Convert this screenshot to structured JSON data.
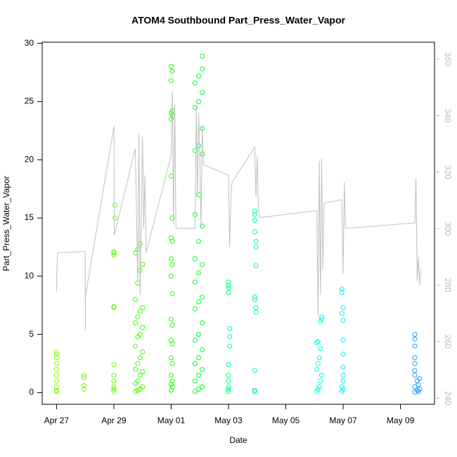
{
  "chart_data": {
    "type": "scatter",
    "title": "ATOM4 Southbound Part_Press_Water_Vapor",
    "xlabel": "Date",
    "ylabel": "Part_Press_Water_Vapor",
    "xlim": [
      "04-26 12:00",
      "05-10 04:30"
    ],
    "ylim": [
      -1.0,
      30.1
    ],
    "y2lim": [
      237.8,
      366
    ],
    "xticks": [
      {
        "value": "04-27 00:00",
        "label": "Apr 27"
      },
      {
        "value": "04-29 00:00",
        "label": "Apr 29"
      },
      {
        "value": "05-01 00:00",
        "label": "May 01"
      },
      {
        "value": "05-03 00:00",
        "label": "May 03"
      },
      {
        "value": "05-05 00:00",
        "label": "May 05"
      },
      {
        "value": "05-07 00:00",
        "label": "May 07"
      },
      {
        "value": "05-09 00:00",
        "label": "May 09"
      }
    ],
    "yticks": [
      0,
      5,
      10,
      15,
      20,
      25,
      30
    ],
    "y2ticks": [
      240,
      260,
      280,
      300,
      320,
      340,
      360
    ],
    "series": [
      {
        "color": "#80ff00",
        "x": [
          "04-27 00:00",
          "04-27 00:00",
          "04-27 00:00",
          "04-27 00:00",
          "04-27 00:00",
          "04-27 00:00",
          "04-27 00:00",
          "04-27 00:00",
          "04-27 00:00",
          "04-27 00:00"
        ],
        "values": [
          0.1,
          0.2,
          0.5,
          1,
          1.5,
          2,
          2.5,
          3,
          3.3,
          3.5
        ]
      },
      {
        "color": "#70ff00",
        "x": [
          "04-27 23:00",
          "04-27 23:00",
          "04-27 23:00",
          "04-27 23:00"
        ],
        "values": [
          0.3,
          0.6,
          1.3,
          1.5
        ]
      },
      {
        "color": "#60ff00",
        "x": [
          "04-29 00:00",
          "04-29 00:00",
          "04-29 00:00",
          "04-29 00:00",
          "04-29 00:00",
          "04-29 00:00",
          "04-29 00:00",
          "04-29 00:00",
          "04-29 00:00",
          "04-29 00:00",
          "04-29 00:00",
          "04-29 01:00",
          "04-29 01:00"
        ],
        "values": [
          0.1,
          0.3,
          0.5,
          1,
          1.5,
          2.4,
          7.3,
          7.4,
          11.8,
          12,
          12.1,
          15,
          16.1
        ]
      },
      {
        "color": "#40ff00",
        "x": [
          "04-29 18:00",
          "04-29 20:00",
          "04-29 22:00",
          "04-30 00:00",
          "04-29 18:00",
          "04-29 20:00",
          "04-29 22:00",
          "04-30 00:00",
          "04-29 18:00",
          "04-29 20:00",
          "04-29 22:00",
          "04-30 00:00",
          "04-29 18:00",
          "04-29 20:00",
          "04-29 22:00",
          "04-30 00:00",
          "04-29 18:00",
          "04-29 20:00",
          "04-29 22:00",
          "04-30 00:00",
          "04-29 18:00",
          "04-29 20:00",
          "04-29 22:00",
          "04-30 00:00",
          "04-29 18:00",
          "04-29 20:00",
          "04-29 22:00"
        ],
        "values": [
          0.1,
          0.2,
          0.3,
          0.5,
          0.8,
          1,
          1.5,
          1.8,
          2,
          2.5,
          3,
          3.5,
          4,
          4.8,
          5,
          5.6,
          6,
          6.5,
          7,
          7.3,
          8,
          9.4,
          10.5,
          11,
          12,
          12.3,
          12.8
        ]
      },
      {
        "color": "#20ff00",
        "x": [
          "05-01 00:00",
          "05-01 01:00",
          "05-01 00:00",
          "05-01 01:00",
          "05-01 00:00",
          "05-01 01:00",
          "05-01 00:00",
          "05-01 01:00",
          "05-01 00:00",
          "05-01 01:00",
          "05-01 00:00",
          "05-01 01:00",
          "05-01 00:00",
          "05-01 01:00",
          "05-01 00:00",
          "05-01 01:00",
          "05-01 00:00",
          "05-01 01:00",
          "05-01 00:00",
          "05-01 00:00",
          "05-01 01:00",
          "05-01 00:00",
          "05-01 01:00",
          "05-01 00:00",
          "05-01 01:00",
          "05-01 00:00"
        ],
        "values": [
          0.2,
          0.5,
          0.7,
          1,
          1.5,
          2.5,
          3,
          4.2,
          4.5,
          5.8,
          6.3,
          8.5,
          10,
          11,
          11.5,
          13,
          13.3,
          15,
          18.6,
          23.5,
          23.8,
          24,
          24.2,
          26.8,
          27.6,
          28
        ]
      },
      {
        "color": "#00ff30",
        "x": [
          "05-01 20:00",
          "05-01 23:00",
          "05-02 02:00",
          "05-01 20:00",
          "05-01 23:00",
          "05-02 02:00",
          "05-01 20:00",
          "05-01 23:00",
          "05-02 02:00",
          "05-01 20:00",
          "05-01 23:00",
          "05-02 02:00",
          "05-01 20:00",
          "05-01 23:00",
          "05-02 02:00",
          "05-01 20:00",
          "05-01 23:00",
          "05-02 02:00",
          "05-01 20:00",
          "05-01 23:00",
          "05-02 02:00",
          "05-01 20:00",
          "05-01 23:00",
          "05-02 02:00",
          "05-01 20:00",
          "05-01 23:00",
          "05-02 02:00",
          "05-01 20:00",
          "05-01 23:00",
          "05-02 02:00",
          "05-01 20:00",
          "05-01 23:00",
          "05-02 02:00",
          "05-02 02:00"
        ],
        "values": [
          0.1,
          0.3,
          0.5,
          1,
          1.5,
          2,
          2.5,
          3,
          3.7,
          4.5,
          5,
          6,
          7.2,
          7.8,
          8.2,
          9.5,
          10.3,
          11,
          11.5,
          13,
          14.3,
          15.3,
          17,
          20.5,
          20.8,
          21.2,
          22.7,
          24.5,
          25,
          25.8,
          26.6,
          27.2,
          27.8,
          28.9
        ]
      },
      {
        "color": "#00ff80",
        "x": [
          "05-03 00:00",
          "05-03 00:00",
          "05-03 00:00",
          "05-03 00:00",
          "05-03 00:00",
          "05-03 00:00",
          "05-03 01:00",
          "05-03 01:00",
          "05-03 01:00",
          "05-03 00:00",
          "05-03 00:00",
          "05-03 00:00",
          "05-03 00:00"
        ],
        "values": [
          0.1,
          0.3,
          0.5,
          1,
          1.5,
          2.4,
          4,
          4.8,
          5.5,
          8.6,
          9,
          9.2,
          9.5
        ]
      },
      {
        "color": "#00ffa0",
        "x": [
          "05-03 22:00",
          "05-03 22:00",
          "05-03 22:00",
          "05-03 23:00",
          "05-03 23:00",
          "05-03 22:00",
          "05-03 22:00",
          "05-03 23:00",
          "05-03 23:00",
          "05-03 23:00",
          "05-03 22:00",
          "05-03 22:00",
          "05-03 22:00",
          "05-03 22:00"
        ],
        "values": [
          0.1,
          0.2,
          1.9,
          6.9,
          7.3,
          8.0,
          8.2,
          10.9,
          12.5,
          13.0,
          13.8,
          14.8,
          15.3,
          15.6
        ]
      },
      {
        "color": "#00ffe8",
        "x": [
          "05-06 02:00",
          "05-06 03:00",
          "05-06 04:00",
          "05-06 05:00",
          "05-06 06:00",
          "05-06 02:00",
          "05-06 03:00",
          "05-06 04:00",
          "05-06 05:00",
          "05-06 02:00",
          "05-06 03:00",
          "05-06 05:00",
          "05-06 06:00",
          "05-06 06:00"
        ],
        "values": [
          0.1,
          0.3,
          0.5,
          1,
          1.5,
          2,
          2.5,
          3,
          3.8,
          4.3,
          4.4,
          6.1,
          6.3,
          6.5
        ]
      },
      {
        "color": "#00f0ff",
        "x": [
          "05-06 23:00",
          "05-07 00:00",
          "05-06 23:00",
          "05-07 00:00",
          "05-07 00:00",
          "05-07 00:00",
          "05-07 00:00",
          "05-07 00:00",
          "05-07 00:00",
          "05-06 23:00",
          "05-07 00:00",
          "05-06 23:00",
          "05-06 23:00"
        ],
        "values": [
          0.1,
          0.3,
          0.5,
          1,
          1.5,
          2.2,
          3.3,
          4.5,
          6.2,
          6.8,
          7.3,
          8.6,
          8.9
        ]
      },
      {
        "color": "#1ea0ff",
        "x": [
          "05-09 12:00",
          "05-09 15:00",
          "05-09 14:00",
          "05-09 16:00",
          "05-09 12:00",
          "05-09 15:00",
          "05-09 14:00",
          "05-09 16:00",
          "05-09 12:00",
          "05-09 12:00",
          "05-09 12:00",
          "05-09 12:00",
          "05-09 12:00",
          "05-09 12:00",
          "05-09 12:00"
        ],
        "values": [
          0.05,
          0.1,
          0.2,
          0.3,
          0.5,
          0.7,
          1,
          1.2,
          1.5,
          1.9,
          2.5,
          3,
          4,
          4.6,
          5
        ]
      },
      {
        "color": "#c0c0c0",
        "style": "line",
        "axis": "y2",
        "x": [
          "04-27 00:00",
          "04-27 00:30",
          "04-27 01:00",
          "04-28 00:00",
          "04-28 00:10",
          "04-28 00:20",
          "04-29 00:10",
          "04-29 00:20",
          "04-29 18:00",
          "04-29 20:00",
          "04-29 21:00",
          "04-29 22:00",
          "04-30 00:00",
          "04-30 01:00",
          "04-30 02:00",
          "04-30 03:00",
          "05-01 00:00",
          "05-01 01:00",
          "05-01 02:00",
          "05-01 03:00",
          "05-01 04:00",
          "05-01 20:00",
          "05-01 21:00",
          "05-01 22:00",
          "05-01 23:00",
          "05-02 00:00",
          "05-02 01:00",
          "05-02 02:00",
          "05-02 03:00",
          "05-03 00:00",
          "05-03 01:00",
          "05-03 02:00",
          "05-03 03:00",
          "05-03 22:00",
          "05-03 23:00",
          "05-04 00:00",
          "05-04 01:00",
          "05-04 02:00",
          "05-06 02:00",
          "05-06 03:00",
          "05-06 04:00",
          "05-06 05:00",
          "05-06 06:00",
          "05-06 07:00",
          "05-06 08:00",
          "05-06 23:00",
          "05-07 00:00",
          "05-07 01:00",
          "05-07 02:00",
          "05-09 12:00",
          "05-09 13:00",
          "05-09 14:00",
          "05-09 15:00",
          "05-09 16:00",
          "05-09 17:00"
        ],
        "values": [
          277.7,
          287.7,
          291.4,
          291.9,
          264.0,
          276.5,
          336.3,
          297.7,
          328.3,
          281.4,
          333.8,
          276.5,
          332.6,
          300.1,
          318.9,
          291.4,
          326.0,
          348.8,
          301.4,
          344,
          300.1,
          300.1,
          343.8,
          311.4,
          341,
          323.8,
          300.1,
          336,
          322.6,
          318.9,
          293.4,
          311.4,
          316.4,
          328.8,
          311.4,
          326,
          307.6,
          303.9,
          306.4,
          269,
          323.8,
          276.5,
          325,
          285.2,
          309,
          310.2,
          283.9,
          316.4,
          300.1,
          302,
          318,
          281.4,
          290,
          280,
          286
        ]
      }
    ]
  }
}
